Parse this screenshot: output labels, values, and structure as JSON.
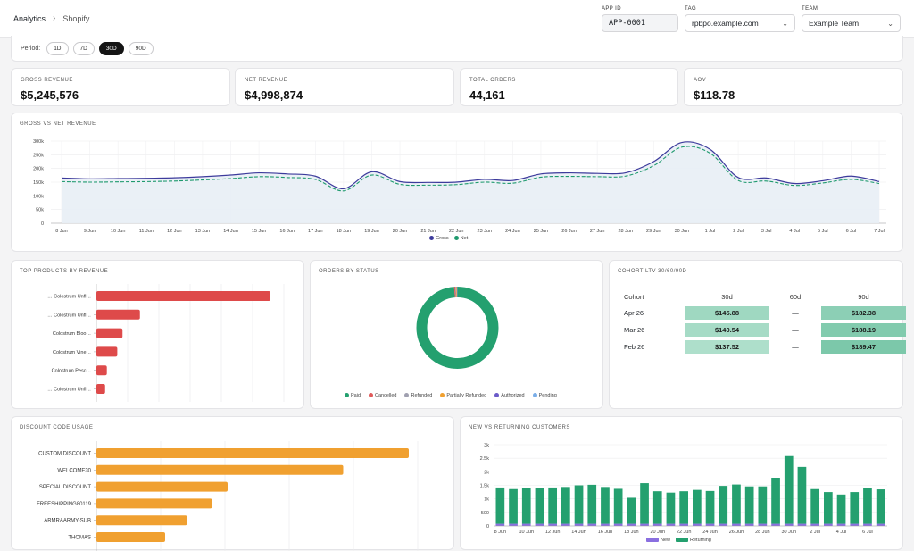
{
  "breadcrumb": {
    "root": "Analytics",
    "current": "Shopify"
  },
  "fields": {
    "app_id": {
      "label": "APP ID",
      "value": "APP-0001"
    },
    "tag": {
      "label": "TAG",
      "value": "rpbpo.example.com"
    },
    "team": {
      "label": "TEAM",
      "value": "Example Team"
    }
  },
  "period": {
    "label": "Period:",
    "options": [
      "1D",
      "7D",
      "30D",
      "90D"
    ],
    "selected": "30D"
  },
  "kpis": [
    {
      "label": "GROSS REVENUE",
      "value": "$5,245,576"
    },
    {
      "label": "NET REVENUE",
      "value": "$4,998,874"
    },
    {
      "label": "TOTAL ORDERS",
      "value": "44,161"
    },
    {
      "label": "AOV",
      "value": "$118.78"
    }
  ],
  "colors": {
    "gross": "#3d3b9c",
    "net": "#1f9a6e",
    "bar_red": "#de4a4a",
    "bar_orange": "#f0a030",
    "green": "#24a06f",
    "purple": "#8a6fe0"
  },
  "chart_data": [
    {
      "type": "line",
      "title": "GROSS VS NET REVENUE",
      "x": [
        "8 Jun",
        "9 Jun",
        "10 Jun",
        "11 Jun",
        "12 Jun",
        "13 Jun",
        "14 Jun",
        "15 Jun",
        "16 Jun",
        "17 Jun",
        "18 Jun",
        "19 Jun",
        "20 Jun",
        "21 Jun",
        "22 Jun",
        "23 Jun",
        "24 Jun",
        "25 Jun",
        "26 Jun",
        "27 Jun",
        "28 Jun",
        "29 Jun",
        "30 Jun",
        "1 Jul",
        "2 Jul",
        "3 Jul",
        "4 Jul",
        "5 Jul",
        "6 Jul",
        "7 Jul"
      ],
      "y_ticks": [
        "0",
        "50k",
        "100k",
        "150k",
        "200k",
        "250k",
        "300k"
      ],
      "ylim": [
        0,
        300000
      ],
      "series": [
        {
          "name": "Gross",
          "values": [
            165000,
            162000,
            163000,
            164000,
            166000,
            170000,
            176000,
            184000,
            180000,
            172000,
            126000,
            188000,
            152000,
            149000,
            150000,
            160000,
            156000,
            180000,
            184000,
            182000,
            184000,
            225000,
            295000,
            270000,
            167000,
            165000,
            145000,
            155000,
            172000,
            152000
          ]
        },
        {
          "name": "Net",
          "values": [
            152000,
            150000,
            151000,
            152000,
            154000,
            158000,
            163000,
            170000,
            167000,
            160000,
            118000,
            176000,
            142000,
            139000,
            141000,
            150000,
            146000,
            168000,
            171000,
            170000,
            172000,
            210000,
            278000,
            256000,
            156000,
            154000,
            138000,
            147000,
            160000,
            145000
          ]
        }
      ]
    },
    {
      "type": "bar",
      "title": "TOP PRODUCTS BY REVENUE",
      "categories": [
        "… Colostrum Unfl…",
        "… Colostrum Unfl…",
        "Colostrum Bloo…",
        "Colostrum Vine…",
        "Colostrum Pesc…",
        "… Colostrum Unfl…"
      ],
      "values": [
        100,
        25,
        15,
        12,
        6,
        5
      ]
    },
    {
      "type": "pie",
      "title": "ORDERS BY STATUS",
      "categories": [
        "Paid",
        "Cancelled",
        "Refunded",
        "Partially Refunded",
        "Authorized",
        "Pending"
      ],
      "values": [
        98.5,
        0.5,
        0.3,
        0.3,
        0.2,
        0.2
      ],
      "colors": [
        "#24a06f",
        "#e05a5a",
        "#a0a0b0",
        "#f0a030",
        "#6b5bc9",
        "#7aaee8"
      ]
    },
    {
      "type": "bar",
      "title": "DISCOUNT CODE USAGE",
      "categories": [
        "CUSTOM DISCOUNT",
        "WELCOME30",
        "SPECIAL DISCOUNT",
        "FREESHIPPING80119",
        "ARMRAARMY-SUB",
        "THOMAS"
      ],
      "values": [
        100,
        79,
        42,
        37,
        29,
        22
      ]
    },
    {
      "type": "bar",
      "title": "NEW VS RETURNING CUSTOMERS",
      "x_labels": [
        "8 Jun",
        "10 Jun",
        "12 Jun",
        "14 Jun",
        "16 Jun",
        "18 Jun",
        "20 Jun",
        "22 Jun",
        "24 Jun",
        "26 Jun",
        "28 Jun",
        "30 Jun",
        "2 Jul",
        "4 Jul",
        "6 Jul"
      ],
      "y_ticks": [
        "0",
        "500",
        "1k",
        "1.5k",
        "2k",
        "2.5k",
        "3k"
      ],
      "ylim": [
        0,
        3000
      ],
      "series": [
        {
          "name": "New",
          "values": [
            80,
            80,
            80,
            80,
            80,
            80,
            80,
            80,
            80,
            80,
            80,
            80,
            80,
            80,
            80,
            80,
            80,
            80,
            80,
            80,
            80,
            80,
            80,
            80,
            80,
            80,
            80,
            80,
            80,
            80
          ]
        },
        {
          "name": "Returning",
          "values": [
            1340,
            1280,
            1320,
            1310,
            1340,
            1360,
            1420,
            1440,
            1360,
            1290,
            960,
            1500,
            1200,
            1150,
            1200,
            1250,
            1210,
            1400,
            1450,
            1380,
            1380,
            1700,
            2500,
            2100,
            1280,
            1170,
            1080,
            1170,
            1320,
            1270
          ]
        }
      ]
    }
  ],
  "cohort": {
    "title": "COHORT LTV 30/60/90D",
    "headers": [
      "Cohort",
      "30d",
      "60d",
      "90d"
    ],
    "rows": [
      {
        "cohort": "Apr 26",
        "d30": "$145.88",
        "d60": "—",
        "d90": "$182.38"
      },
      {
        "cohort": "Mar 26",
        "d30": "$140.54",
        "d60": "—",
        "d90": "$188.19"
      },
      {
        "cohort": "Feb 26",
        "d30": "$137.52",
        "d60": "—",
        "d90": "$189.47"
      }
    ]
  }
}
